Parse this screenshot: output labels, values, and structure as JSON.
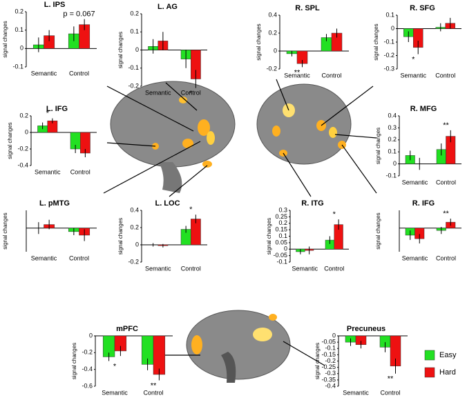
{
  "chart_data": [
    {
      "type": "bar",
      "title": "L. IPS",
      "ylabel": "signal changes",
      "categories": [
        "Semantic",
        "Control"
      ],
      "ylim": [
        -0.1,
        0.2
      ],
      "yticks": [
        -0.1,
        0,
        0.1,
        0.2
      ],
      "series": [
        {
          "values": [
            0.02,
            0.08
          ],
          "errors": [
            0.04,
            0.04
          ]
        },
        {
          "values": [
            0.07,
            0.13
          ],
          "errors": [
            0.03,
            0.03
          ]
        }
      ],
      "annotations": [
        {
          "text": "p = 0.067",
          "category": "Control"
        }
      ]
    },
    {
      "type": "bar",
      "title": "L. AG",
      "ylabel": "signal changes",
      "categories": [
        "Semantic",
        "Control"
      ],
      "ylim": [
        -0.2,
        0.2
      ],
      "yticks": [
        -0.2,
        -0.1,
        0,
        0.1,
        0.2
      ],
      "series": [
        {
          "values": [
            0.02,
            -0.05
          ],
          "errors": [
            0.04,
            0.05
          ]
        },
        {
          "values": [
            0.05,
            -0.16
          ],
          "errors": [
            0.05,
            0.05
          ]
        }
      ],
      "annotations": [
        {
          "text": "*",
          "category": "Control"
        }
      ]
    },
    {
      "type": "bar",
      "title": "R. SPL",
      "ylabel": "signal changes",
      "categories": [
        "Semantic",
        "Control"
      ],
      "ylim": [
        -0.2,
        0.4
      ],
      "yticks": [
        -0.2,
        0,
        0.2,
        0.4
      ],
      "series": [
        {
          "values": [
            -0.03,
            0.15
          ],
          "errors": [
            0.03,
            0.04
          ]
        },
        {
          "values": [
            -0.14,
            0.2
          ],
          "errors": [
            0.04,
            0.05
          ]
        }
      ],
      "annotations": [
        {
          "text": "**",
          "category": "Semantic"
        }
      ]
    },
    {
      "type": "bar",
      "title": "R. SFG",
      "ylabel": "signal changes",
      "categories": [
        "Semantic",
        "Control"
      ],
      "ylim": [
        -0.3,
        0.1
      ],
      "yticks": [
        -0.3,
        -0.2,
        -0.1,
        0,
        0.1
      ],
      "series": [
        {
          "values": [
            -0.06,
            0.01
          ],
          "errors": [
            0.04,
            0.03
          ]
        },
        {
          "values": [
            -0.14,
            0.04
          ],
          "errors": [
            0.05,
            0.04
          ]
        }
      ],
      "annotations": [
        {
          "text": "*",
          "category": "Semantic"
        }
      ]
    },
    {
      "type": "bar",
      "title": "L. IFG",
      "ylabel": "signal changes",
      "categories": [
        "Semantic",
        "Control"
      ],
      "ylim": [
        -0.4,
        0.2
      ],
      "yticks": [
        -0.4,
        -0.2,
        0,
        0.2
      ],
      "series": [
        {
          "values": [
            0.08,
            -0.2
          ],
          "errors": [
            0.04,
            0.05
          ]
        },
        {
          "values": [
            0.14,
            -0.25
          ],
          "errors": [
            0.03,
            0.05
          ]
        }
      ],
      "annotations": [
        {
          "text": "*",
          "category": "Semantic"
        }
      ]
    },
    {
      "type": "bar",
      "title": "R. MFG",
      "ylabel": "signal changes",
      "categories": [
        "Semantic",
        "Control"
      ],
      "ylim": [
        -0.1,
        0.4
      ],
      "yticks": [
        -0.1,
        0,
        0.1,
        0.2,
        0.3,
        0.4
      ],
      "series": [
        {
          "values": [
            0.07,
            0.12
          ],
          "errors": [
            0.04,
            0.05
          ]
        },
        {
          "values": [
            0,
            0.23
          ],
          "errors": [
            0.05,
            0.05
          ]
        }
      ],
      "annotations": [
        {
          "text": "**",
          "category": "Control"
        }
      ]
    },
    {
      "type": "bar",
      "title": "L. pMTG",
      "ylabel": "signal changes",
      "categories": [
        "Semantic",
        "Control"
      ],
      "ylim": [
        -0.2,
        0.15
      ],
      "series": [
        {
          "values": [
            0,
            -0.03
          ],
          "errors": [
            0.05,
            0.03
          ]
        },
        {
          "values": [
            0.03,
            -0.06
          ],
          "errors": [
            0.04,
            0.05
          ]
        }
      ],
      "annotations": []
    },
    {
      "type": "bar",
      "title": "L. LOC",
      "ylabel": "signal changes",
      "categories": [
        "Semantic",
        "Control"
      ],
      "ylim": [
        -0.2,
        0.4
      ],
      "yticks": [
        -0.2,
        0,
        0.2,
        0.4
      ],
      "series": [
        {
          "values": [
            0,
            0.18
          ],
          "errors": [
            0.02,
            0.04
          ]
        },
        {
          "values": [
            -0.01,
            0.3
          ],
          "errors": [
            0.02,
            0.05
          ]
        }
      ],
      "annotations": [
        {
          "text": "*",
          "category": "Control"
        }
      ]
    },
    {
      "type": "bar",
      "title": "R. ITG",
      "ylabel": "signal changes",
      "categories": [
        "Semantic",
        "Control"
      ],
      "ylim": [
        -0.1,
        0.3
      ],
      "yticks": [
        -0.1,
        -0.05,
        0,
        0.05,
        0.1,
        0.15,
        0.2,
        0.25,
        0.3
      ],
      "series": [
        {
          "values": [
            -0.02,
            0.07
          ],
          "errors": [
            0.02,
            0.03
          ]
        },
        {
          "values": [
            -0.01,
            0.19
          ],
          "errors": [
            0.03,
            0.04
          ]
        }
      ],
      "annotations": [
        {
          "text": "*",
          "category": "Control"
        }
      ]
    },
    {
      "type": "bar",
      "title": "R. IFG",
      "ylabel": "signal changes",
      "categories": [
        "Semantic",
        "Control"
      ],
      "ylim": [
        -0.2,
        0.15
      ],
      "series": [
        {
          "values": [
            -0.06,
            -0.02
          ],
          "errors": [
            0.04,
            0.03
          ]
        },
        {
          "values": [
            -0.09,
            0.05
          ],
          "errors": [
            0.04,
            0.03
          ]
        }
      ],
      "annotations": [
        {
          "text": "**",
          "category": "Control"
        }
      ]
    },
    {
      "type": "bar",
      "title": "mPFC",
      "ylabel": "signal changes",
      "categories": [
        "Semantic",
        "Control"
      ],
      "ylim": [
        -0.6,
        0
      ],
      "yticks": [
        -0.6,
        -0.4,
        -0.2,
        0
      ],
      "series": [
        {
          "values": [
            -0.25,
            -0.34
          ],
          "errors": [
            0.05,
            0.07
          ]
        },
        {
          "values": [
            -0.18,
            -0.46
          ],
          "errors": [
            0.06,
            0.07
          ]
        }
      ],
      "annotations": [
        {
          "text": "*",
          "category": "Semantic"
        },
        {
          "text": "**",
          "category": "Control"
        }
      ]
    },
    {
      "type": "bar",
      "title": "Precuneus",
      "ylabel": "signal changes",
      "categories": [
        "Semantic",
        "Control"
      ],
      "ylim": [
        -0.4,
        0
      ],
      "yticks": [
        -0.4,
        -0.35,
        -0.3,
        -0.25,
        -0.2,
        -0.15,
        -0.1,
        -0.05,
        0
      ],
      "series": [
        {
          "values": [
            -0.05,
            -0.09
          ],
          "errors": [
            0.03,
            0.04
          ]
        },
        {
          "values": [
            -0.07,
            -0.24
          ],
          "errors": [
            0.03,
            0.06
          ]
        }
      ],
      "annotations": [
        {
          "text": "**",
          "category": "Control"
        }
      ]
    }
  ],
  "legend": [
    {
      "name": "Easy",
      "color": "#22e022"
    },
    {
      "name": "Hard",
      "color": "#ee1111"
    }
  ]
}
